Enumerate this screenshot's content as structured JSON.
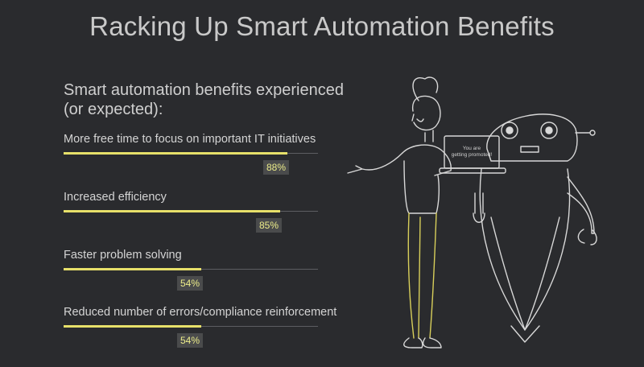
{
  "header": {
    "title": "Racking Up Smart Automation Benefits"
  },
  "chart_data": {
    "type": "bar",
    "title": "Smart automation benefits experienced (or expected):",
    "categories": [
      "More free time to focus on important IT initiatives",
      "Increased efficiency",
      "Faster problem solving",
      "Reduced number of errors/compliance reinforcement"
    ],
    "values": [
      88,
      85,
      54,
      54
    ],
    "labels": [
      "88%",
      "85%",
      "54%",
      "54%"
    ],
    "ylim": [
      0,
      100
    ],
    "orientation": "horizontal",
    "bar_color": "#e7e06a"
  },
  "illustration": {
    "laptop_text_line1": "You are",
    "laptop_text_line2": "getting promoted!"
  },
  "colors": {
    "background": "#2a2b2e",
    "accent": "#e7e06a",
    "track": "#5d5e62"
  }
}
